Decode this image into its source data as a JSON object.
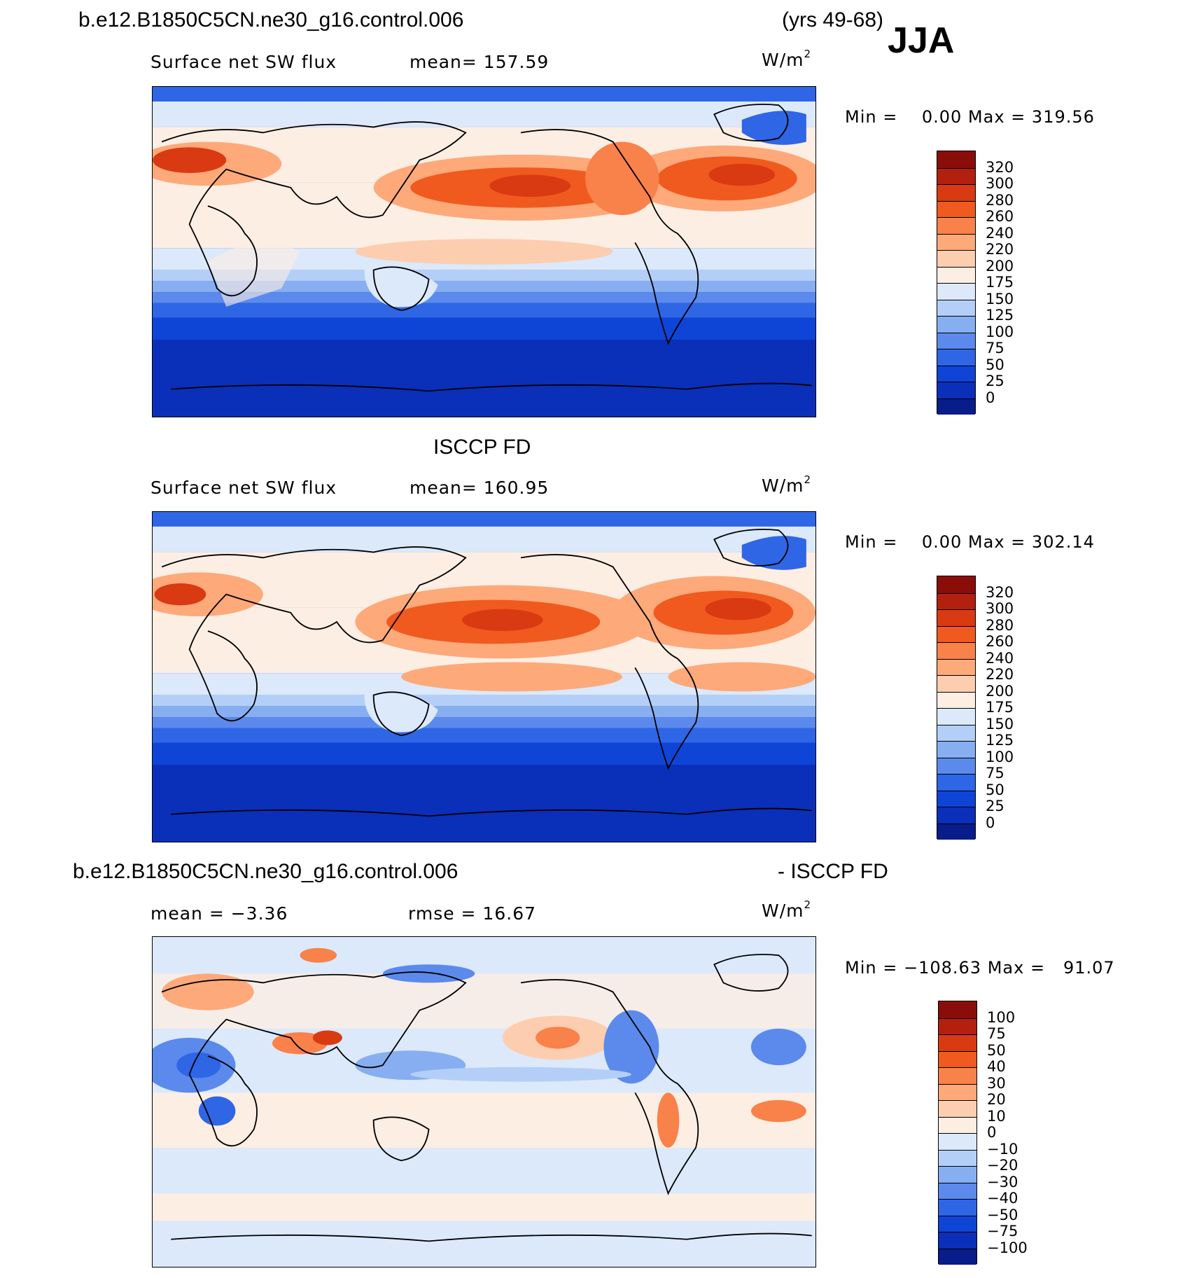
{
  "header": {
    "case_name": "b.e12.B1850C5CN.ne30_g16.control.006",
    "years": "(yrs 49-68)",
    "season": "JJA"
  },
  "panels": [
    {
      "id": "model",
      "title": "",
      "variable": "Surface net SW flux",
      "stat1": "mean= 157.59",
      "stat2": "",
      "units": "W/m",
      "units_sup": "2",
      "min_label": "Min =",
      "min_value": "0.00",
      "max_label": "Max =",
      "max_value": "319.56",
      "colorbar_ticks": [
        "320",
        "300",
        "280",
        "260",
        "240",
        "220",
        "200",
        "175",
        "150",
        "125",
        "100",
        "75",
        "50",
        "25",
        "0"
      ],
      "colors": [
        "#8b0d0a",
        "#b3200e",
        "#d93a12",
        "#f05a1f",
        "#f9814a",
        "#fda97a",
        "#fdcdb0",
        "#fdeee3",
        "#dbe9fb",
        "#b4cff7",
        "#87aef0",
        "#5b8aec",
        "#2f66e6",
        "#0f45d6",
        "#0a2fb8",
        "#081c8a"
      ]
    },
    {
      "id": "obs",
      "title": "ISCCP FD",
      "variable": "Surface net SW flux",
      "stat1": "mean= 160.95",
      "stat2": "",
      "units": "W/m",
      "units_sup": "2",
      "min_label": "Min =",
      "min_value": "0.00",
      "max_label": "Max =",
      "max_value": "302.14",
      "colorbar_ticks": [
        "320",
        "300",
        "280",
        "260",
        "240",
        "220",
        "200",
        "175",
        "150",
        "125",
        "100",
        "75",
        "50",
        "25",
        "0"
      ],
      "colors": [
        "#8b0d0a",
        "#b3200e",
        "#d93a12",
        "#f05a1f",
        "#f9814a",
        "#fda97a",
        "#fdcdb0",
        "#fdeee3",
        "#dbe9fb",
        "#b4cff7",
        "#87aef0",
        "#5b8aec",
        "#2f66e6",
        "#0f45d6",
        "#0a2fb8",
        "#081c8a"
      ]
    },
    {
      "id": "diff",
      "title_left": "b.e12.B1850C5CN.ne30_g16.control.006",
      "title_right": "- ISCCP FD",
      "variable": "",
      "stat1": "mean =   −3.36",
      "stat2": "rmse =   16.67",
      "units": "W/m",
      "units_sup": "2",
      "min_label": "Min =",
      "min_value": "−108.63",
      "max_label": "Max =",
      "max_value": "91.07",
      "colorbar_ticks": [
        "100",
        "75",
        "50",
        "40",
        "30",
        "20",
        "10",
        "0",
        "−10",
        "−20",
        "−30",
        "−40",
        "−50",
        "−75",
        "−100"
      ],
      "colors": [
        "#8b0d0a",
        "#b3200e",
        "#d93a12",
        "#f05a1f",
        "#f9814a",
        "#fda97a",
        "#fdcdb0",
        "#fdeee3",
        "#dbe9fb",
        "#b4cff7",
        "#87aef0",
        "#5b8aec",
        "#2f66e6",
        "#0f45d6",
        "#0a2fb8",
        "#081c8a"
      ]
    }
  ]
}
